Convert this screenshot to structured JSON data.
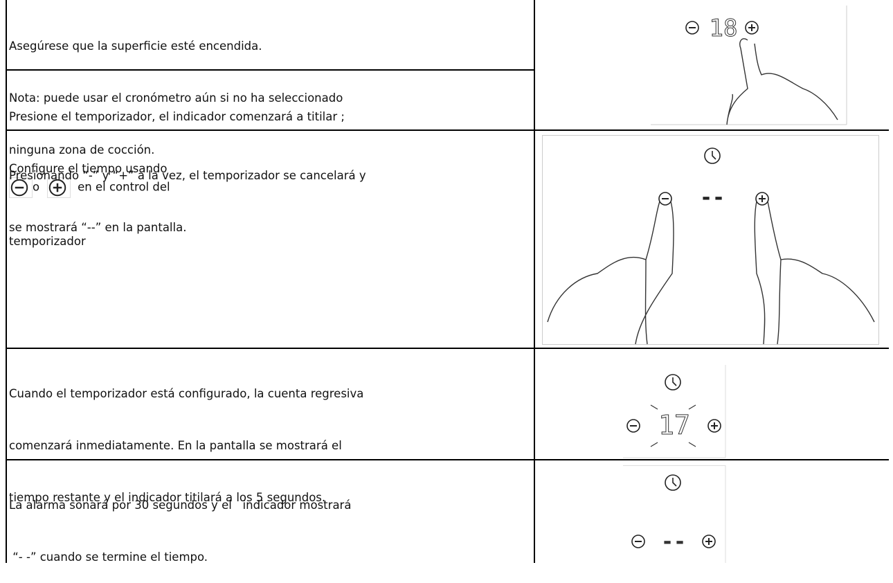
{
  "rows": [
    {
      "lines": [
        "Asegúrese que la superficie esté encendida.",
        "Nota: puede usar el cronómetro aún si no ha seleccionado",
        "ninguna zona de cocción."
      ],
      "display": "18"
    },
    {
      "lines": [
        "Presione el temporizador, el indicador comenzará a titilar ;",
        "Configure el tiempo usando",
        "o",
        "en el control del",
        "temporizador"
      ]
    },
    {
      "lines": [
        "Presionando “-” y “+” a la vez, el temporizador se cancelará y",
        "se mostrará “--” en la pantalla."
      ],
      "display": "--"
    },
    {
      "lines": [
        "Cuando el temporizador está configurado, la cuenta regresiva",
        "comenzará inmediatamente. En la pantalla se mostrará el",
        "tiempo restante y el indicador titilará a los 5 segundos."
      ],
      "display": "17"
    },
    {
      "lines": [
        "La alarma sonará por 30 segundos y el   indicador mostrará",
        " “- -” cuando se termine el tiempo."
      ],
      "display": "--"
    }
  ]
}
